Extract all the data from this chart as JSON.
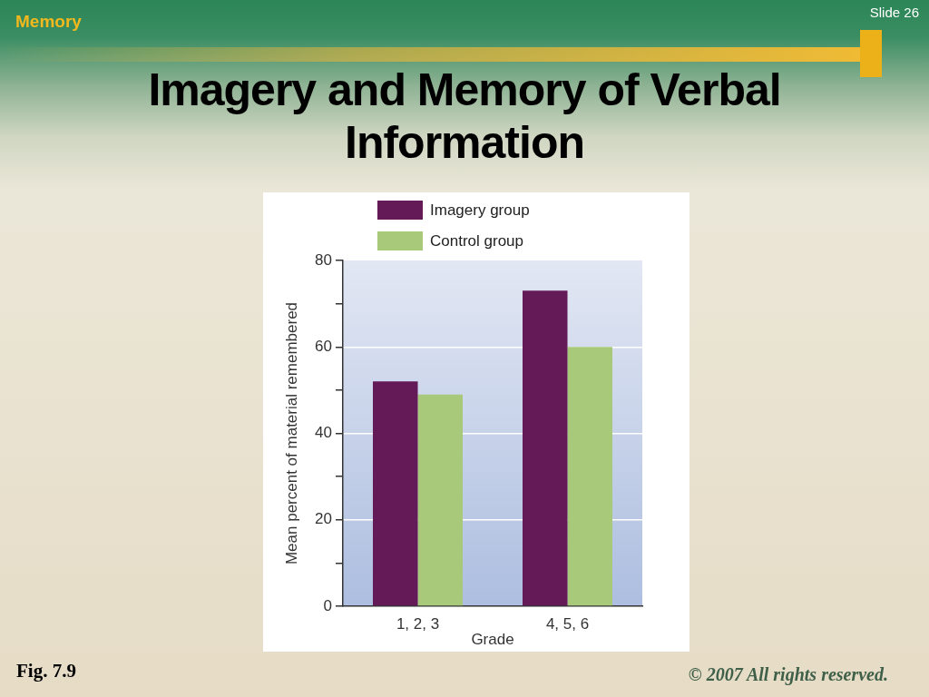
{
  "chart_data": {
    "type": "bar",
    "title": "Imagery and Memory of Verbal Information",
    "xlabel": "Grade",
    "ylabel": "Mean percent of material remembered",
    "categories": [
      "1, 2, 3",
      "4, 5, 6"
    ],
    "series": [
      {
        "name": "Imagery group",
        "color": "#651a58",
        "values": [
          52,
          73
        ]
      },
      {
        "name": "Control group",
        "color": "#a9c97a",
        "values": [
          49,
          60
        ]
      }
    ],
    "ylim": [
      0,
      80
    ],
    "yticks": [
      0,
      {
        "value": 10,
        "label": null
      },
      20,
      {
        "value": 30,
        "label": null
      },
      40,
      {
        "value": 50,
        "label": null
      },
      60,
      {
        "value": 70,
        "label": null
      },
      80
    ],
    "grid": "y",
    "legend": "top",
    "annotations": [
      "Memory",
      "Slide 26",
      "Fig. 7.9",
      "© 2007 All rights reserved."
    ]
  }
}
